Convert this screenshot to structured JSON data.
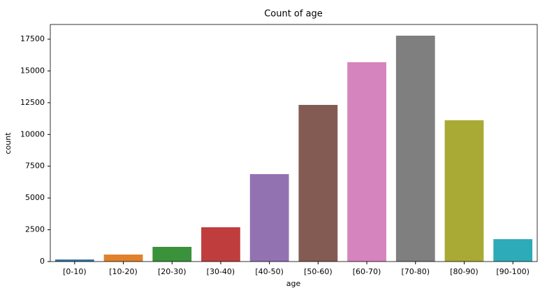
{
  "chart_data": {
    "type": "bar",
    "title": "Count of age",
    "xlabel": "age",
    "ylabel": "count",
    "categories": [
      "[0-10)",
      "[10-20)",
      "[20-30)",
      "[30-40)",
      "[40-50)",
      "[50-60)",
      "[60-70)",
      "[70-80)",
      "[80-90)",
      "[90-100)"
    ],
    "values": [
      160,
      550,
      1155,
      2696,
      6879,
      12327,
      15684,
      17775,
      11116,
      1761
    ],
    "colors": [
      "#3274a1",
      "#e1812c",
      "#3a923a",
      "#c03d3e",
      "#9372b2",
      "#845b53",
      "#d684bd",
      "#7f7f7f",
      "#a9aa35",
      "#2eabb8"
    ],
    "ylim": [
      0,
      18655
    ],
    "yticks": [
      0,
      2500,
      5000,
      7500,
      10000,
      12500,
      15000,
      17500
    ],
    "grid": false
  }
}
